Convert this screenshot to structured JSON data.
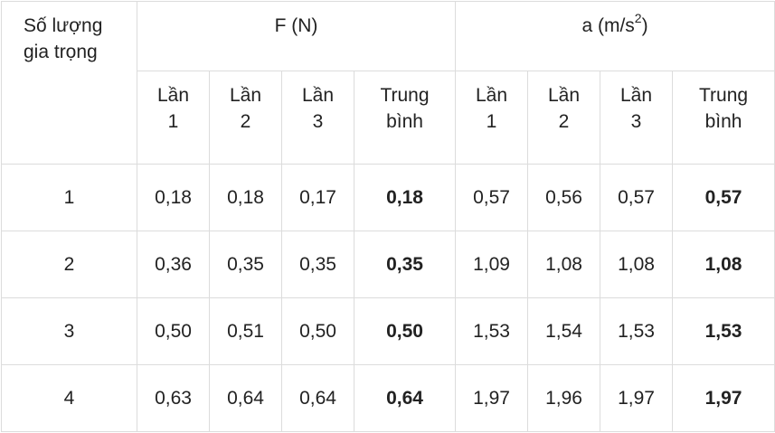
{
  "table": {
    "corner": "Số lượng gia trọng",
    "groups": [
      {
        "text": "F (N)"
      },
      {
        "text": "a (m/s",
        "sup": "2",
        "tail": ")"
      }
    ],
    "subheaders": [
      "Lần 1",
      "Lần 2",
      "Lần 3",
      "Trung bình",
      "Lần 1",
      "Lần 2",
      "Lần 3",
      "Trung bình"
    ],
    "rows": [
      [
        "1",
        "0,18",
        "0,18",
        "0,17",
        "0,18",
        "0,57",
        "0,56",
        "0,57",
        "0,57"
      ],
      [
        "2",
        "0,36",
        "0,35",
        "0,35",
        "0,35",
        "1,09",
        "1,08",
        "1,08",
        "1,08"
      ],
      [
        "3",
        "0,50",
        "0,51",
        "0,50",
        "0,50",
        "1,53",
        "1,54",
        "1,53",
        "1,53"
      ],
      [
        "4",
        "0,63",
        "0,64",
        "0,64",
        "0,64",
        "1,97",
        "1,96",
        "1,97",
        "1,97"
      ]
    ]
  }
}
